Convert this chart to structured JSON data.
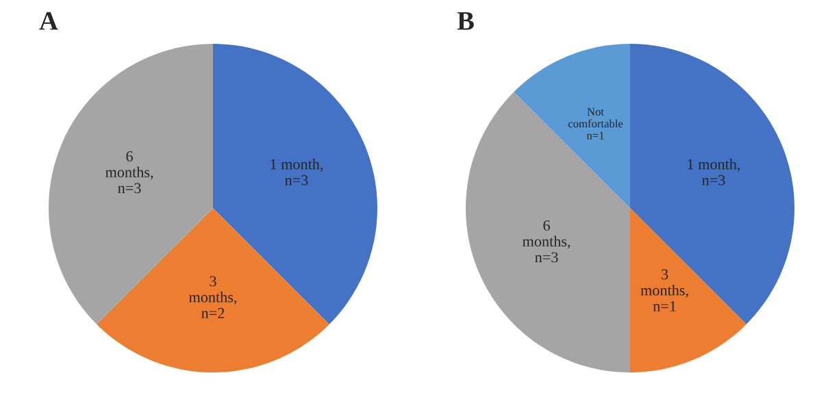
{
  "chart_data": [
    {
      "type": "pie",
      "title": "A",
      "categories": [
        "1 month,\nn=3",
        "3\nmonths,\nn=2",
        "6\nmonths,\nn=3"
      ],
      "values": [
        3,
        2,
        3
      ],
      "colors": [
        "#4472c4",
        "#ed7d31",
        "#a5a5a5"
      ],
      "legend": false
    },
    {
      "type": "pie",
      "title": "B",
      "categories": [
        "1 month,\nn=3",
        "3\nmonths,\nn=1",
        "6\nmonths,\nn=3",
        "Not\ncomfortable\nn=1"
      ],
      "values": [
        3,
        1,
        3,
        1
      ],
      "colors": [
        "#4472c4",
        "#ed7d31",
        "#a5a5a5",
        "#5b9bd5"
      ],
      "legend": false
    }
  ]
}
